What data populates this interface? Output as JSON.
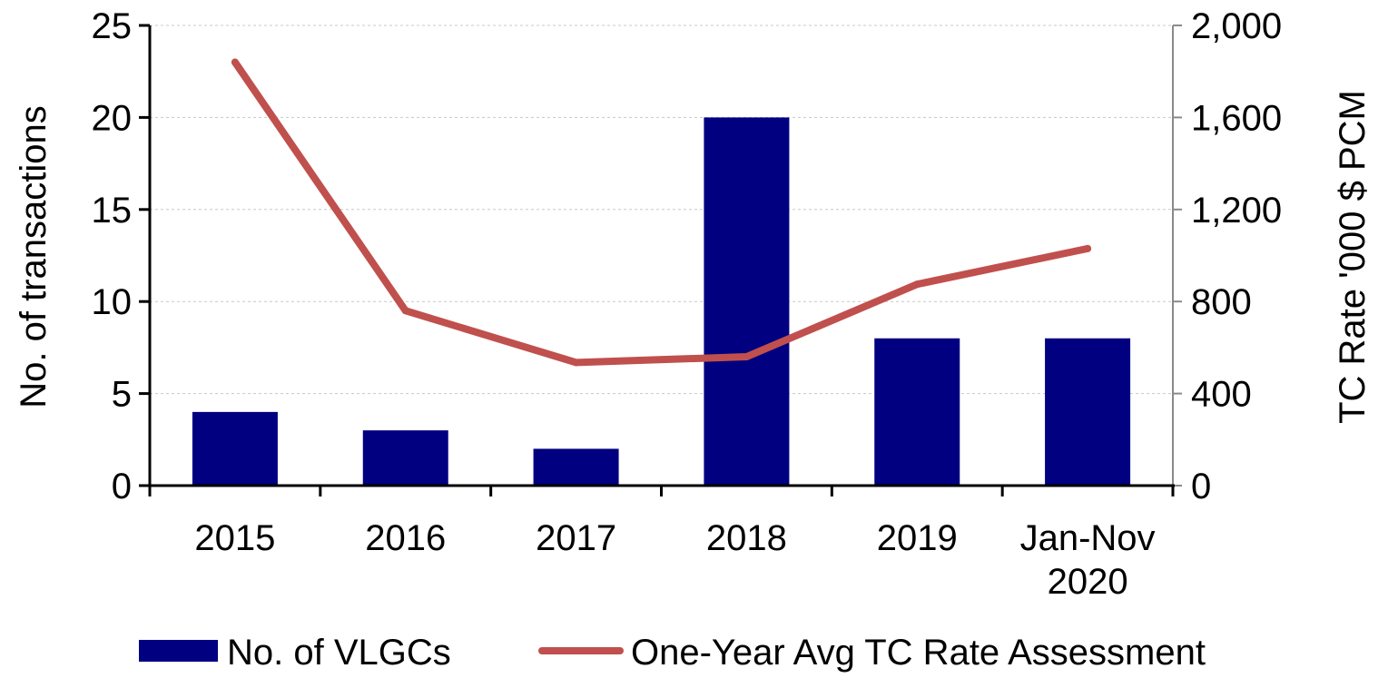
{
  "chart_data": {
    "type": "bar",
    "categories": [
      [
        "2015"
      ],
      [
        "2016"
      ],
      [
        "2017"
      ],
      [
        "2018"
      ],
      [
        "2019"
      ],
      [
        "Jan-Nov",
        "2020"
      ]
    ],
    "series": [
      {
        "name": "No. of VLGCs",
        "type": "bar",
        "axis": "left",
        "color": "#000080",
        "values": [
          4,
          3,
          2,
          20,
          8,
          8
        ]
      },
      {
        "name": "One-Year Avg TC Rate Assessment",
        "type": "line",
        "axis": "right",
        "color": "#C0504D",
        "values": [
          1840,
          760,
          535,
          560,
          875,
          1030
        ]
      }
    ],
    "y_left": {
      "label": "No. of transactions",
      "lim": [
        0,
        25
      ],
      "ticks": [
        "0",
        "5",
        "10",
        "15",
        "20",
        "25"
      ],
      "tick_values": [
        0,
        5,
        10,
        15,
        20,
        25
      ]
    },
    "y_right": {
      "label": "TC Rate '000 $ PCM",
      "lim": [
        0,
        2000
      ],
      "ticks": [
        "0",
        "400",
        "800",
        "1,200",
        "1,600",
        "2,000"
      ],
      "tick_values": [
        0,
        400,
        800,
        1200,
        1600,
        2000
      ]
    },
    "grid": true,
    "legend": "bottom"
  }
}
